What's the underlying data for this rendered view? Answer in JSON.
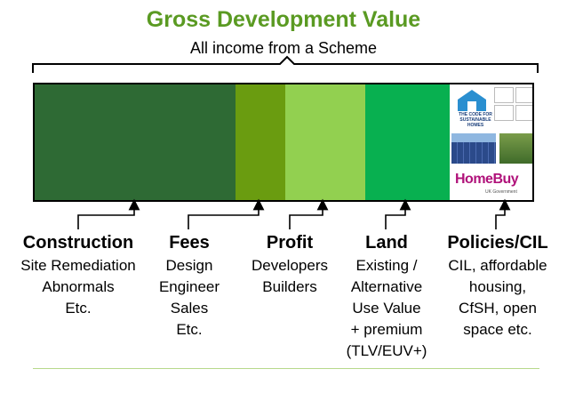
{
  "title": "Gross Development Value",
  "subtitle": "All income from a Scheme",
  "colors": {
    "title": "#5a9a22",
    "construction": "#2e6a34",
    "fees": "#6a9c10",
    "profit": "#92d050",
    "land": "#08b050",
    "policies": "#ffffff"
  },
  "segments": [
    {
      "key": "construction",
      "heading": "Construction",
      "description": "Site Remediation\nAbnormals\nEtc."
    },
    {
      "key": "fees",
      "heading": "Fees",
      "description": "Design\nEngineer\nSales\nEtc."
    },
    {
      "key": "profit",
      "heading": "Profit",
      "description": "Developers\nBuilders"
    },
    {
      "key": "land",
      "heading": "Land",
      "description": "Existing /\nAlternative\nUse Value\n+ premium\n(TLV/EUV+)"
    },
    {
      "key": "policies",
      "heading": "Policies/CIL",
      "description": "CIL, affordable\nhousing,\nCfSH, open\nspace etc."
    }
  ],
  "policy_images": {
    "code_logo_text": "THE CODE FOR SUSTAINABLE HOMES",
    "homebuy_logo_text": "HomeBuy",
    "homebuy_sub_text": "UK Government"
  }
}
